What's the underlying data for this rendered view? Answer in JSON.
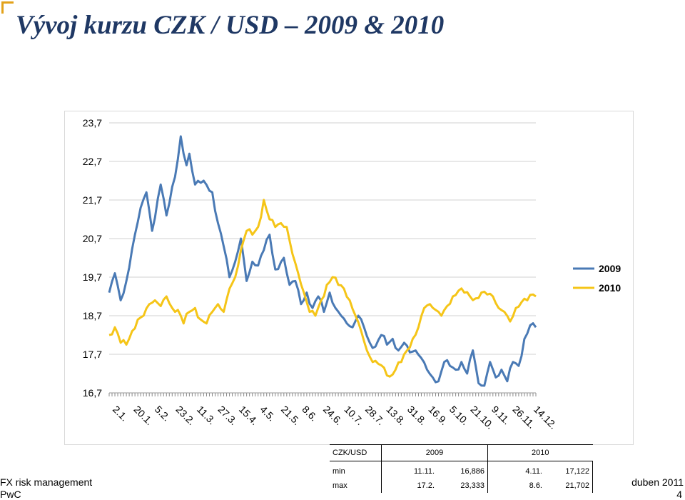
{
  "slide": {
    "title": "Vývoj kurzu CZK / USD – 2009 & 2010",
    "footer_left": "FX risk management",
    "footer_company": "PwC",
    "footer_date": "duben 2011",
    "page_number": "4",
    "accent_color": "#e3a21a",
    "title_color": "#1f3864"
  },
  "chart_data": {
    "type": "line",
    "title": "",
    "xlabel": "",
    "ylabel": "",
    "ylim": [
      16.7,
      23.7
    ],
    "yticks": [
      "23,7",
      "22,7",
      "21,7",
      "20,7",
      "19,7",
      "18,7",
      "17,7",
      "16,7"
    ],
    "ytick_values": [
      23.7,
      22.7,
      21.7,
      20.7,
      19.7,
      18.7,
      17.7,
      16.7
    ],
    "xtick_labels": [
      "2.1.",
      "20.1.",
      "5.2.",
      "23.2.",
      "11.3.",
      "27.3.",
      "15.4.",
      "4.5.",
      "21.5.",
      "8.6.",
      "24.6.",
      "10.7.",
      "28.7.",
      "13.8.",
      "31.8.",
      "16.9.",
      "5.10.",
      "21.10.",
      "9.11.",
      "26.11.",
      "14.12."
    ],
    "grid": "horizontal",
    "legend": "right",
    "n_points": 150,
    "series": [
      {
        "name": "2009",
        "color": "#4a7ab5",
        "knots": [
          [
            0,
            19.3
          ],
          [
            2,
            19.8
          ],
          [
            4,
            19.1
          ],
          [
            6,
            19.6
          ],
          [
            9,
            20.8
          ],
          [
            11,
            21.5
          ],
          [
            13,
            21.9
          ],
          [
            15,
            20.9
          ],
          [
            18,
            22.1
          ],
          [
            20,
            21.3
          ],
          [
            23,
            22.3
          ],
          [
            25,
            23.35
          ],
          [
            27,
            22.6
          ],
          [
            28,
            22.9
          ],
          [
            30,
            22.1
          ],
          [
            33,
            22.2
          ],
          [
            36,
            21.9
          ],
          [
            38,
            21.1
          ],
          [
            40,
            20.5
          ],
          [
            42,
            19.7
          ],
          [
            44,
            20.1
          ],
          [
            46,
            20.7
          ],
          [
            48,
            19.6
          ],
          [
            50,
            20.1
          ],
          [
            52,
            20.0
          ],
          [
            54,
            20.4
          ],
          [
            56,
            20.8
          ],
          [
            58,
            19.9
          ],
          [
            61,
            20.2
          ],
          [
            63,
            19.5
          ],
          [
            65,
            19.6
          ],
          [
            67,
            19.0
          ],
          [
            69,
            19.3
          ],
          [
            71,
            18.9
          ],
          [
            73,
            19.2
          ],
          [
            75,
            18.8
          ],
          [
            77,
            19.3
          ],
          [
            79,
            18.9
          ],
          [
            81,
            18.7
          ],
          [
            83,
            18.5
          ],
          [
            85,
            18.4
          ],
          [
            87,
            18.7
          ],
          [
            89,
            18.4
          ],
          [
            91,
            18.0
          ],
          [
            93,
            17.9
          ],
          [
            95,
            18.2
          ],
          [
            97,
            17.95
          ],
          [
            99,
            18.1
          ],
          [
            101,
            17.8
          ],
          [
            103,
            18.0
          ],
          [
            105,
            17.75
          ],
          [
            107,
            17.8
          ],
          [
            109,
            17.6
          ],
          [
            111,
            17.3
          ],
          [
            113,
            17.1
          ],
          [
            115,
            17.0
          ],
          [
            117,
            17.5
          ],
          [
            119,
            17.4
          ],
          [
            121,
            17.3
          ],
          [
            123,
            17.5
          ],
          [
            125,
            17.2
          ],
          [
            127,
            17.8
          ],
          [
            129,
            16.95
          ],
          [
            131,
            16.886
          ],
          [
            133,
            17.5
          ],
          [
            135,
            17.1
          ],
          [
            137,
            17.3
          ],
          [
            139,
            17.0
          ],
          [
            141,
            17.5
          ],
          [
            143,
            17.4
          ],
          [
            145,
            18.1
          ],
          [
            147,
            18.45
          ],
          [
            149,
            18.4
          ]
        ]
      },
      {
        "name": "2010",
        "color": "#f5c518",
        "knots": [
          [
            0,
            18.2
          ],
          [
            2,
            18.4
          ],
          [
            4,
            18.0
          ],
          [
            6,
            17.95
          ],
          [
            8,
            18.3
          ],
          [
            10,
            18.6
          ],
          [
            12,
            18.7
          ],
          [
            14,
            19.0
          ],
          [
            16,
            19.1
          ],
          [
            18,
            18.95
          ],
          [
            20,
            19.2
          ],
          [
            22,
            18.9
          ],
          [
            24,
            18.85
          ],
          [
            26,
            18.5
          ],
          [
            28,
            18.8
          ],
          [
            30,
            18.9
          ],
          [
            32,
            18.6
          ],
          [
            34,
            18.5
          ],
          [
            36,
            18.8
          ],
          [
            38,
            19.0
          ],
          [
            40,
            18.8
          ],
          [
            42,
            19.4
          ],
          [
            44,
            19.7
          ],
          [
            46,
            20.4
          ],
          [
            48,
            20.9
          ],
          [
            50,
            20.8
          ],
          [
            52,
            21.0
          ],
          [
            54,
            21.702
          ],
          [
            56,
            21.2
          ],
          [
            58,
            21.0
          ],
          [
            60,
            21.1
          ],
          [
            62,
            21.0
          ],
          [
            64,
            20.3
          ],
          [
            66,
            19.8
          ],
          [
            68,
            19.3
          ],
          [
            70,
            18.8
          ],
          [
            72,
            18.7
          ],
          [
            74,
            19.1
          ],
          [
            76,
            19.5
          ],
          [
            78,
            19.7
          ],
          [
            80,
            19.5
          ],
          [
            82,
            19.4
          ],
          [
            84,
            19.1
          ],
          [
            86,
            18.7
          ],
          [
            88,
            18.3
          ],
          [
            90,
            17.8
          ],
          [
            92,
            17.5
          ],
          [
            94,
            17.45
          ],
          [
            96,
            17.35
          ],
          [
            98,
            17.122
          ],
          [
            100,
            17.3
          ],
          [
            102,
            17.5
          ],
          [
            104,
            17.8
          ],
          [
            106,
            18.1
          ],
          [
            108,
            18.4
          ],
          [
            110,
            18.9
          ],
          [
            112,
            19.0
          ],
          [
            114,
            18.85
          ],
          [
            116,
            18.7
          ],
          [
            118,
            18.95
          ],
          [
            120,
            19.2
          ],
          [
            122,
            19.35
          ],
          [
            124,
            19.3
          ],
          [
            126,
            19.2
          ],
          [
            128,
            19.15
          ],
          [
            130,
            19.3
          ],
          [
            132,
            19.25
          ],
          [
            134,
            19.2
          ],
          [
            136,
            18.9
          ],
          [
            138,
            18.8
          ],
          [
            140,
            18.55
          ],
          [
            142,
            18.9
          ],
          [
            144,
            19.05
          ],
          [
            146,
            19.1
          ],
          [
            148,
            19.25
          ],
          [
            149,
            19.2
          ]
        ]
      }
    ],
    "summary_table": {
      "header": [
        "CZK/USD",
        "2009",
        "2010"
      ],
      "rows": [
        {
          "label": "min",
          "date_2009": "11.11.",
          "value_2009": "16,886",
          "date_2010": "4.11.",
          "value_2010": "17,122"
        },
        {
          "label": "max",
          "date_2009": "17.2.",
          "value_2009": "23,333",
          "date_2010": "8.6.",
          "value_2010": "21,702"
        }
      ]
    }
  }
}
